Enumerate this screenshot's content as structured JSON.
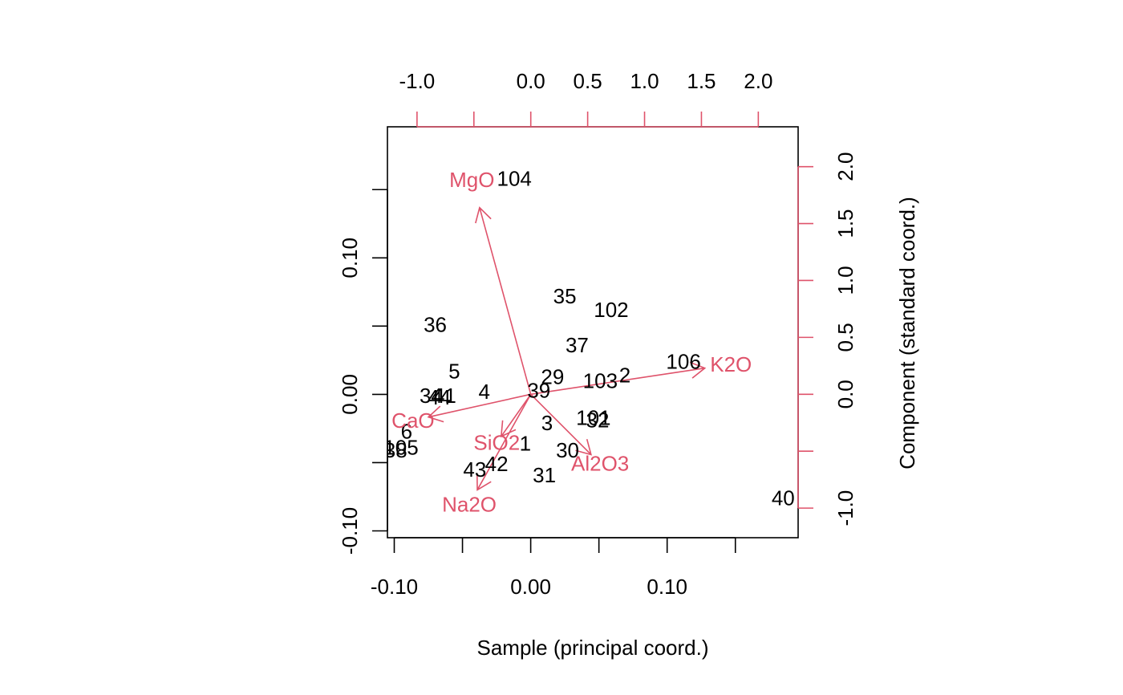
{
  "chart_data": {
    "type": "scatter",
    "subtype": "biplot",
    "xlabel": "Sample (principal coord.)",
    "ylabel": "Component (standard coord.)",
    "colors": {
      "points": "#000000",
      "variables": "#DF536B"
    },
    "bottom_axis": {
      "ticks": [
        -0.1,
        0.0,
        0.1
      ],
      "tick_labels": [
        "-0.10",
        "0.00",
        "0.10"
      ],
      "range": [
        -0.105,
        0.196
      ]
    },
    "left_axis": {
      "ticks": [
        -0.1,
        -0.05,
        0.0,
        0.05,
        0.1,
        0.15
      ],
      "tick_labels": [
        "-0.10",
        "",
        "0.00",
        "",
        "0.10",
        ""
      ],
      "range": [
        -0.105,
        0.196
      ]
    },
    "top_axis": {
      "ticks": [
        -1.0,
        -0.5,
        0.0,
        0.5,
        1.0,
        1.5,
        2.0
      ],
      "tick_labels": [
        "-1.0",
        "",
        "0.0",
        "0.5",
        "1.0",
        "1.5",
        "2.0"
      ],
      "range": [
        -1.26,
        2.35
      ]
    },
    "right_axis": {
      "ticks": [
        -1.0,
        -0.5,
        0.0,
        0.5,
        1.0,
        1.5,
        2.0
      ],
      "tick_labels": [
        "-1.0",
        "",
        "0.0",
        "0.5",
        "1.0",
        "1.5",
        "2.0"
      ],
      "range": [
        -1.26,
        2.35
      ]
    },
    "points": [
      {
        "label": "104",
        "x": -0.012,
        "y": 0.158
      },
      {
        "label": "35",
        "x": 0.025,
        "y": 0.072
      },
      {
        "label": "102",
        "x": 0.059,
        "y": 0.062
      },
      {
        "label": "36",
        "x": -0.07,
        "y": 0.051
      },
      {
        "label": "37",
        "x": 0.034,
        "y": 0.036
      },
      {
        "label": "106",
        "x": 0.112,
        "y": 0.024
      },
      {
        "label": "5",
        "x": -0.056,
        "y": 0.017
      },
      {
        "label": "29",
        "x": 0.016,
        "y": 0.013
      },
      {
        "label": "103",
        "x": 0.051,
        "y": 0.01
      },
      {
        "label": "2",
        "x": 0.069,
        "y": 0.014
      },
      {
        "label": "39",
        "x": 0.006,
        "y": 0.003
      },
      {
        "label": "4",
        "x": -0.034,
        "y": 0.002
      },
      {
        "label": "34",
        "x": -0.073,
        "y": -0.001
      },
      {
        "label": "41",
        "x": -0.063,
        "y": -0.001
      },
      {
        "label": "44",
        "x": -0.067,
        "y": -0.002
      },
      {
        "label": "101",
        "x": 0.046,
        "y": -0.017
      },
      {
        "label": "32",
        "x": 0.049,
        "y": -0.019
      },
      {
        "label": "3",
        "x": 0.012,
        "y": -0.021
      },
      {
        "label": "6",
        "x": -0.091,
        "y": -0.027
      },
      {
        "label": "1",
        "x": -0.004,
        "y": -0.036
      },
      {
        "label": "105",
        "x": -0.095,
        "y": -0.039
      },
      {
        "label": "38",
        "x": -0.099,
        "y": -0.041
      },
      {
        "label": "30",
        "x": 0.027,
        "y": -0.041
      },
      {
        "label": "42",
        "x": -0.025,
        "y": -0.051
      },
      {
        "label": "43",
        "x": -0.041,
        "y": -0.055
      },
      {
        "label": "31",
        "x": 0.01,
        "y": -0.059
      },
      {
        "label": "40",
        "x": 0.185,
        "y": -0.076
      }
    ],
    "variables": [
      {
        "label": "MgO",
        "x": -0.45,
        "y": 1.64
      },
      {
        "label": "K2O",
        "x": 1.53,
        "y": 0.23
      },
      {
        "label": "CaO",
        "x": -0.9,
        "y": -0.2
      },
      {
        "label": "SiO2",
        "x": -0.26,
        "y": -0.37
      },
      {
        "label": "Al2O3",
        "x": 0.53,
        "y": -0.53
      },
      {
        "label": "Na2O",
        "x": -0.47,
        "y": -0.84
      }
    ]
  }
}
